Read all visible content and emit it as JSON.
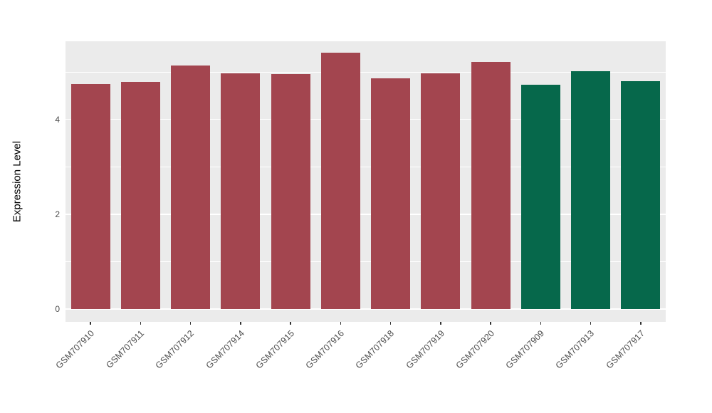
{
  "chart_data": {
    "type": "bar",
    "title": "",
    "xlabel": "",
    "ylabel": "Expression Level",
    "categories": [
      "GSM707910",
      "GSM707911",
      "GSM707912",
      "GSM707914",
      "GSM707915",
      "GSM707916",
      "GSM707918",
      "GSM707919",
      "GSM707920",
      "GSM707909",
      "GSM707913",
      "GSM707917"
    ],
    "values": [
      4.75,
      4.8,
      5.14,
      4.98,
      4.96,
      5.41,
      4.87,
      4.98,
      5.22,
      4.74,
      5.02,
      4.81
    ],
    "bar_color_keys": [
      "maroon",
      "maroon",
      "maroon",
      "maroon",
      "maroon",
      "maroon",
      "maroon",
      "maroon",
      "maroon",
      "green",
      "green",
      "green"
    ],
    "bar_colors": {
      "maroon": "#A3454F",
      "green": "#06684B"
    },
    "ylim": [
      -0.27,
      5.65
    ],
    "y_major_ticks": [
      0,
      2,
      4
    ],
    "y_minor_ticks": [
      1,
      3,
      5
    ],
    "panel_bg": "#EBEBEB",
    "grid_color": "#FFFFFF",
    "grid": "on",
    "legend": "none",
    "bar_width_fraction": 0.78
  }
}
